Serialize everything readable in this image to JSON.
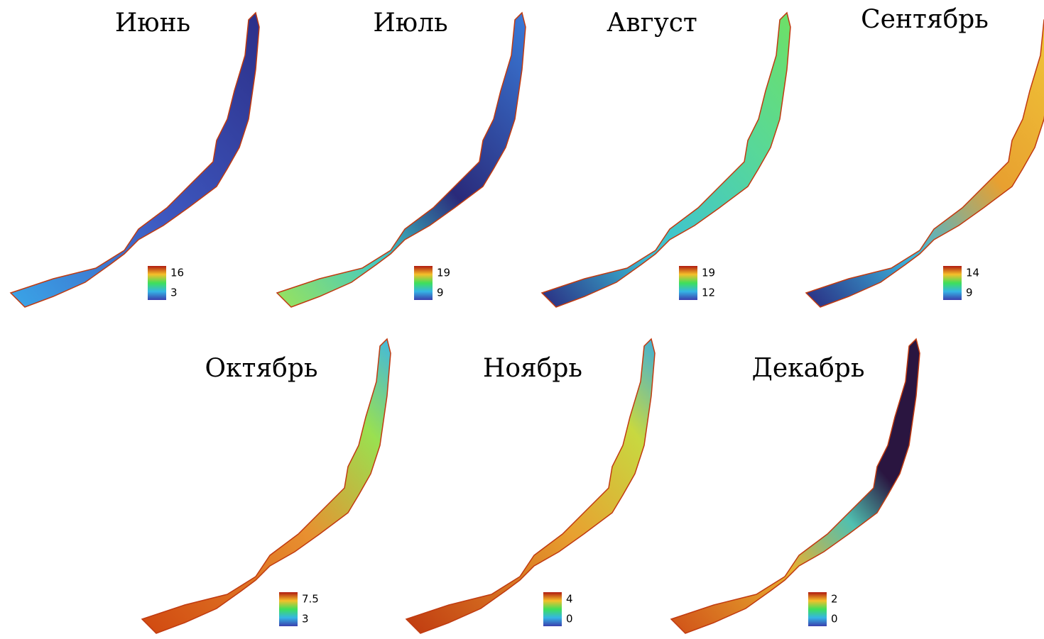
{
  "panels": [
    {
      "title": "Июнь",
      "legend": {
        "max": "16",
        "min": "3"
      }
    },
    {
      "title": "Июль",
      "legend": {
        "max": "19",
        "min": "9"
      }
    },
    {
      "title": "Август",
      "legend": {
        "max": "19",
        "min": "12"
      }
    },
    {
      "title": "Сентябрь",
      "legend": {
        "max": "14",
        "min": "9"
      }
    },
    {
      "title": "Октябрь",
      "legend": {
        "max": "7.5",
        "min": "3"
      }
    },
    {
      "title": "Ноябрь",
      "legend": {
        "max": "4",
        "min": "0"
      }
    },
    {
      "title": "Декабрь",
      "legend": {
        "max": "2",
        "min": "0"
      }
    }
  ]
}
